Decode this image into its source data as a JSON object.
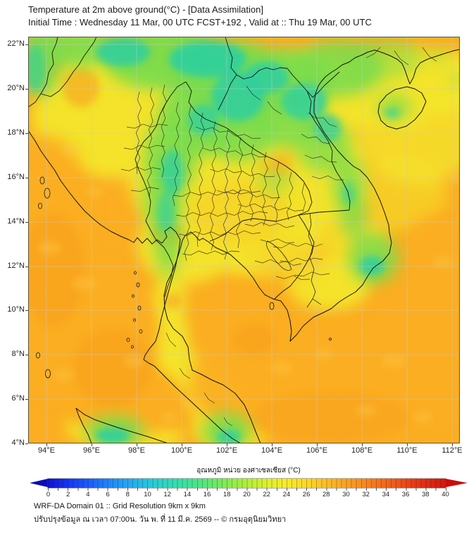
{
  "title": {
    "line1": "Temperature at 2m above ground(°C) - [Data Assimilation]",
    "line2": "Initial Time : Wednesday 11 Mar, 00 UTC FCST+192 , Valid at :: Thu 19 Mar, 00 UTC"
  },
  "map": {
    "y_axis_labels": [
      "22°N",
      "20°N",
      "18°N",
      "16°N",
      "14°N",
      "12°N",
      "10°N",
      "8°N",
      "6°N",
      "4°N"
    ],
    "x_axis_labels": [
      "94°E",
      "96°E",
      "98°E",
      "100°E",
      "102°E",
      "104°E",
      "106°E",
      "108°E",
      "110°E",
      "112°E"
    ]
  },
  "colorbar": {
    "label": "อุณหภูมิ หน่วย องศาเซลเซียส (°C)",
    "ticks": [
      "0",
      "2",
      "4",
      "6",
      "8",
      "10",
      "12",
      "14",
      "16",
      "18",
      "20",
      "22",
      "24",
      "26",
      "28",
      "30",
      "32",
      "34",
      "36",
      "38",
      "40"
    ],
    "gradient": [
      "#0E12D6",
      "#1436F2",
      "#1A5BFF",
      "#1F83FF",
      "#22A7F5",
      "#25C6E0",
      "#2BDABD",
      "#3BE39A",
      "#59E973",
      "#83EC4F",
      "#B1EF36",
      "#DBF02B",
      "#F7EB25",
      "#FDD823",
      "#FDBD22",
      "#FCA21F",
      "#FA851C",
      "#F56618",
      "#EE4714",
      "#E22B10",
      "#D5150C"
    ],
    "arrow_left_color": "#0A0CB4",
    "arrow_right_color": "#C90D0A"
  },
  "footer": {
    "line1": "WRF-DA Domain 01 :: Grid Resolution 9km x 9km",
    "line2": "ปรับปรุงข้อมูล ณ เวลา 07:00น. วัน พ. ที่ 11 มี.ค. 2569 -- © กรมอุตุนิยมวิทยา"
  },
  "palette": {
    "sea": "#FBAE22",
    "land": "#F4E32B",
    "green": "#7BDC4C",
    "teal": "#2FCFA0",
    "hot": "#F79A1D",
    "tint": "#F8C623",
    "mottle": "#FFC84A",
    "grid": "#C9C9C9",
    "line": "#15130C",
    "frame": "#55554A"
  }
}
